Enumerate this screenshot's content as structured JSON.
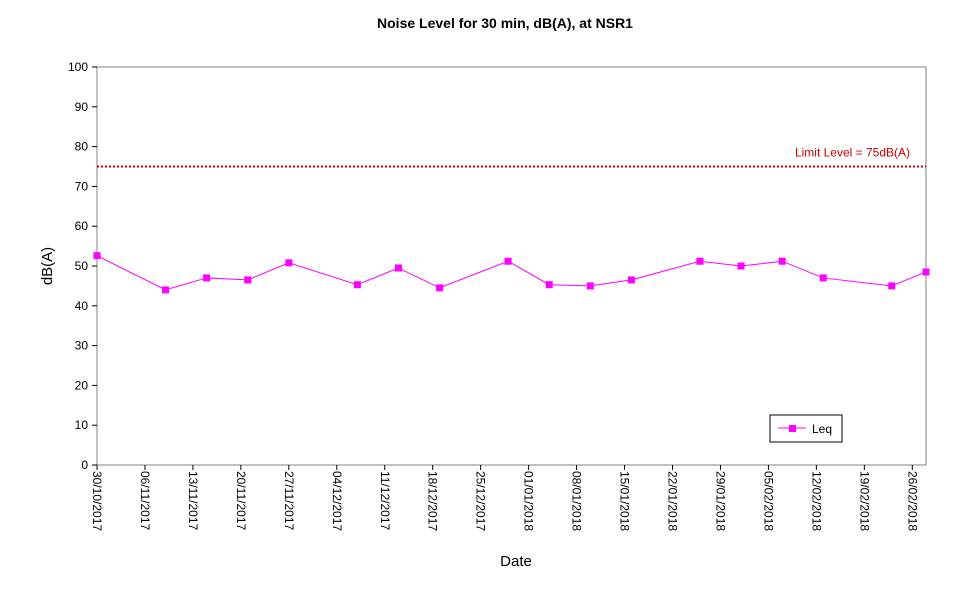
{
  "chart_data": {
    "type": "line",
    "title": "Noise Level for 30 min, dB(A), at NSR1",
    "xlabel": "Date",
    "ylabel": "dB(A)",
    "ylim": [
      0,
      100
    ],
    "yticks": [
      0,
      10,
      20,
      30,
      40,
      50,
      60,
      70,
      80,
      90,
      100
    ],
    "xlim": [
      "2017-10-30",
      "2018-02-28"
    ],
    "xtick_labels": [
      "30/10/2017",
      "06/11/2017",
      "13/11/2017",
      "20/11/2017",
      "27/11/2017",
      "04/12/2017",
      "11/12/2017",
      "18/12/2017",
      "25/12/2017",
      "01/01/2018",
      "08/01/2018",
      "15/01/2018",
      "22/01/2018",
      "29/01/2018",
      "05/02/2018",
      "12/02/2018",
      "19/02/2018",
      "26/02/2018"
    ],
    "series": [
      {
        "name": "Leq",
        "color": "#ff00ff",
        "marker": "square",
        "points": [
          {
            "x": "2017-10-30",
            "y": 52.6
          },
          {
            "x": "2017-11-09",
            "y": 44.0
          },
          {
            "x": "2017-11-15",
            "y": 47.0
          },
          {
            "x": "2017-11-21",
            "y": 46.5
          },
          {
            "x": "2017-11-27",
            "y": 50.8
          },
          {
            "x": "2017-12-07",
            "y": 45.3
          },
          {
            "x": "2017-12-13",
            "y": 49.5
          },
          {
            "x": "2017-12-19",
            "y": 44.5
          },
          {
            "x": "2017-12-29",
            "y": 51.2
          },
          {
            "x": "2018-01-04",
            "y": 45.3
          },
          {
            "x": "2018-01-10",
            "y": 45.0
          },
          {
            "x": "2018-01-16",
            "y": 46.5
          },
          {
            "x": "2018-01-26",
            "y": 51.2
          },
          {
            "x": "2018-02-01",
            "y": 50.0
          },
          {
            "x": "2018-02-07",
            "y": 51.2
          },
          {
            "x": "2018-02-13",
            "y": 47.0
          },
          {
            "x": "2018-02-23",
            "y": 45.0
          },
          {
            "x": "2018-02-28",
            "y": 48.5
          }
        ]
      }
    ],
    "limit_line": {
      "value": 75,
      "label": "Limit Level = 75dB(A)",
      "color": "#cc0000",
      "style": "dotted"
    },
    "legend": {
      "position": "bottom-right",
      "entries": [
        "Leq"
      ]
    },
    "grid": false
  }
}
